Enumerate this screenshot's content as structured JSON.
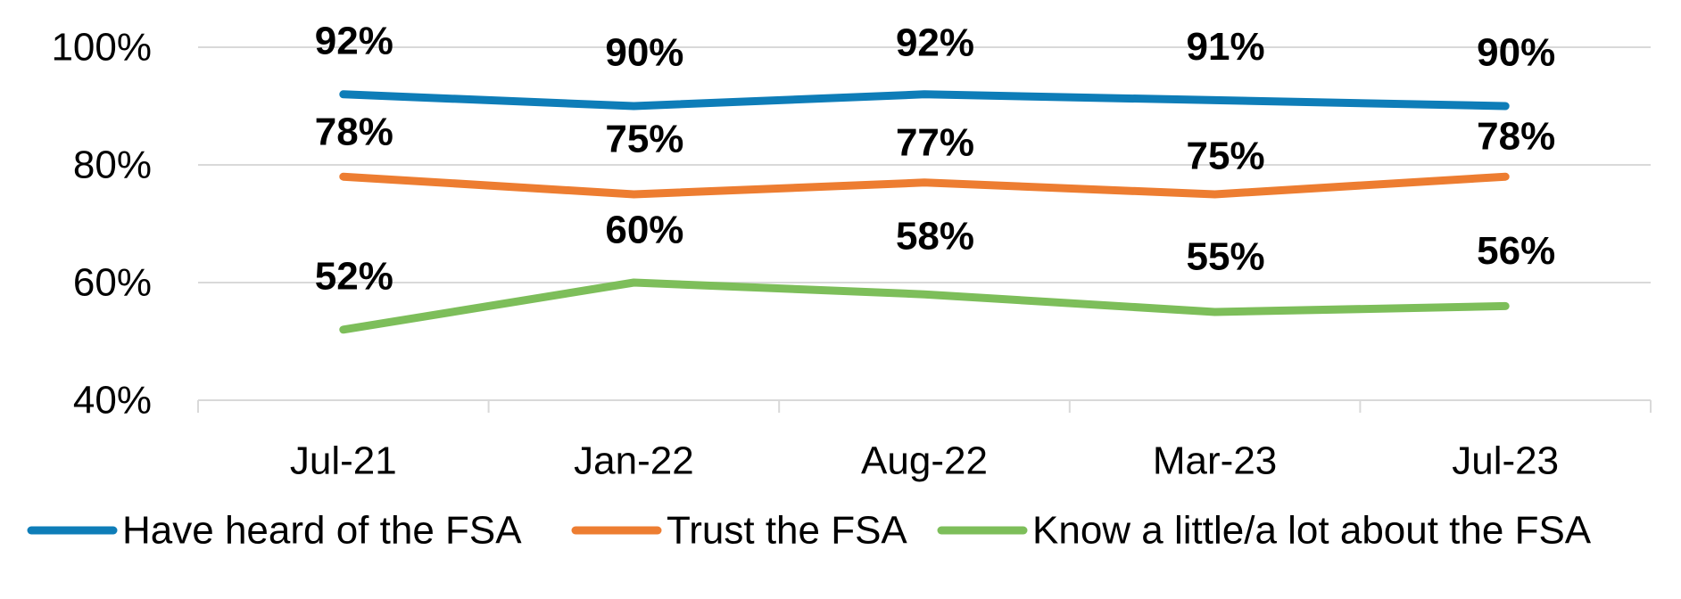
{
  "chart_data": {
    "type": "line",
    "categories": [
      "Jul-21",
      "Jan-22",
      "Aug-22",
      "Mar-23",
      "Jul-23"
    ],
    "y_ticks": [
      "40%",
      "60%",
      "80%",
      "100%"
    ],
    "ylim": [
      40,
      100
    ],
    "grid": true,
    "legend_position": "bottom",
    "series": [
      {
        "name": "Have heard of the FSA",
        "color": "#0E7DB8",
        "values": [
          92,
          90,
          92,
          91,
          90
        ],
        "labels": [
          "92%",
          "90%",
          "92%",
          "91%",
          "90%"
        ]
      },
      {
        "name": "Trust the FSA",
        "color": "#ED7D31",
        "values": [
          78,
          75,
          77,
          75,
          78
        ],
        "labels": [
          "78%",
          "75%",
          "77%",
          "75%",
          "78%"
        ]
      },
      {
        "name": "Know a little/a lot about the FSA",
        "color": "#7DBE5A",
        "values": [
          52,
          60,
          58,
          55,
          56
        ],
        "labels": [
          "52%",
          "60%",
          "58%",
          "55%",
          "56%"
        ]
      }
    ]
  }
}
